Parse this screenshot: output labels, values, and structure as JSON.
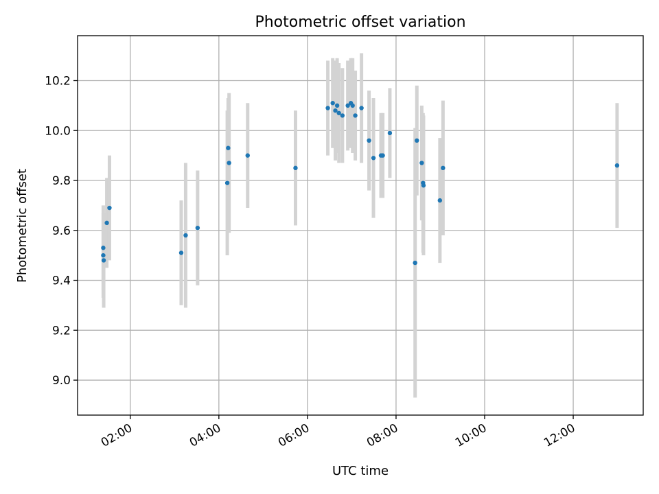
{
  "chart_data": {
    "type": "scatter",
    "title": "Photometric offset variation",
    "xlabel": "UTC time",
    "ylabel": "Photometric offset",
    "x_unit": "hours UTC",
    "xlim": [
      0.81,
      13.58
    ],
    "ylim": [
      8.86,
      10.38
    ],
    "xticks": [
      {
        "value": 2,
        "label": "02:00"
      },
      {
        "value": 4,
        "label": "04:00"
      },
      {
        "value": 6,
        "label": "06:00"
      },
      {
        "value": 8,
        "label": "08:00"
      },
      {
        "value": 10,
        "label": "10:00"
      },
      {
        "value": 12,
        "label": "12:00"
      }
    ],
    "yticks": [
      {
        "value": 9.0,
        "label": "9.0"
      },
      {
        "value": 9.2,
        "label": "9.2"
      },
      {
        "value": 9.4,
        "label": "9.4"
      },
      {
        "value": 9.6,
        "label": "9.6"
      },
      {
        "value": 9.8,
        "label": "9.8"
      },
      {
        "value": 10.0,
        "label": "10.0"
      },
      {
        "value": 10.2,
        "label": "10.2"
      }
    ],
    "grid": true,
    "marker_color": "#1f77b4",
    "errorbar_color": "#d3d3d3",
    "points": [
      {
        "x": 1.39,
        "y": 9.53,
        "err": 0.17
      },
      {
        "x": 1.39,
        "y": 9.5,
        "err": 0.17
      },
      {
        "x": 1.4,
        "y": 9.48,
        "err": 0.19
      },
      {
        "x": 1.47,
        "y": 9.63,
        "err": 0.18
      },
      {
        "x": 1.53,
        "y": 9.69,
        "err": 0.21
      },
      {
        "x": 3.15,
        "y": 9.51,
        "err": 0.21
      },
      {
        "x": 3.25,
        "y": 9.58,
        "err": 0.29
      },
      {
        "x": 3.52,
        "y": 9.61,
        "err": 0.23
      },
      {
        "x": 4.19,
        "y": 9.79,
        "err": 0.29
      },
      {
        "x": 4.21,
        "y": 9.93,
        "err": 0.2
      },
      {
        "x": 4.23,
        "y": 9.87,
        "err": 0.28
      },
      {
        "x": 4.65,
        "y": 9.9,
        "err": 0.21
      },
      {
        "x": 5.73,
        "y": 9.85,
        "err": 0.23
      },
      {
        "x": 6.46,
        "y": 10.09,
        "err": 0.19
      },
      {
        "x": 6.57,
        "y": 10.11,
        "err": 0.18
      },
      {
        "x": 6.63,
        "y": 10.08,
        "err": 0.2
      },
      {
        "x": 6.67,
        "y": 10.1,
        "err": 0.19
      },
      {
        "x": 6.71,
        "y": 10.07,
        "err": 0.2
      },
      {
        "x": 6.79,
        "y": 10.06,
        "err": 0.19
      },
      {
        "x": 6.91,
        "y": 10.1,
        "err": 0.18
      },
      {
        "x": 6.98,
        "y": 10.11,
        "err": 0.18
      },
      {
        "x": 7.02,
        "y": 10.1,
        "err": 0.19
      },
      {
        "x": 7.08,
        "y": 10.06,
        "err": 0.18
      },
      {
        "x": 7.22,
        "y": 10.09,
        "err": 0.22
      },
      {
        "x": 7.39,
        "y": 9.96,
        "err": 0.2
      },
      {
        "x": 7.49,
        "y": 9.89,
        "err": 0.24
      },
      {
        "x": 7.66,
        "y": 9.9,
        "err": 0.17
      },
      {
        "x": 7.7,
        "y": 9.9,
        "err": 0.17
      },
      {
        "x": 7.86,
        "y": 9.99,
        "err": 0.18
      },
      {
        "x": 8.43,
        "y": 9.47,
        "err": 0.54
      },
      {
        "x": 8.47,
        "y": 9.96,
        "err": 0.22
      },
      {
        "x": 8.58,
        "y": 9.87,
        "err": 0.23
      },
      {
        "x": 8.61,
        "y": 9.79,
        "err": 0.28
      },
      {
        "x": 8.62,
        "y": 9.78,
        "err": 0.28
      },
      {
        "x": 8.99,
        "y": 9.72,
        "err": 0.25
      },
      {
        "x": 9.06,
        "y": 9.85,
        "err": 0.27
      },
      {
        "x": 12.99,
        "y": 9.86,
        "err": 0.25
      }
    ]
  }
}
